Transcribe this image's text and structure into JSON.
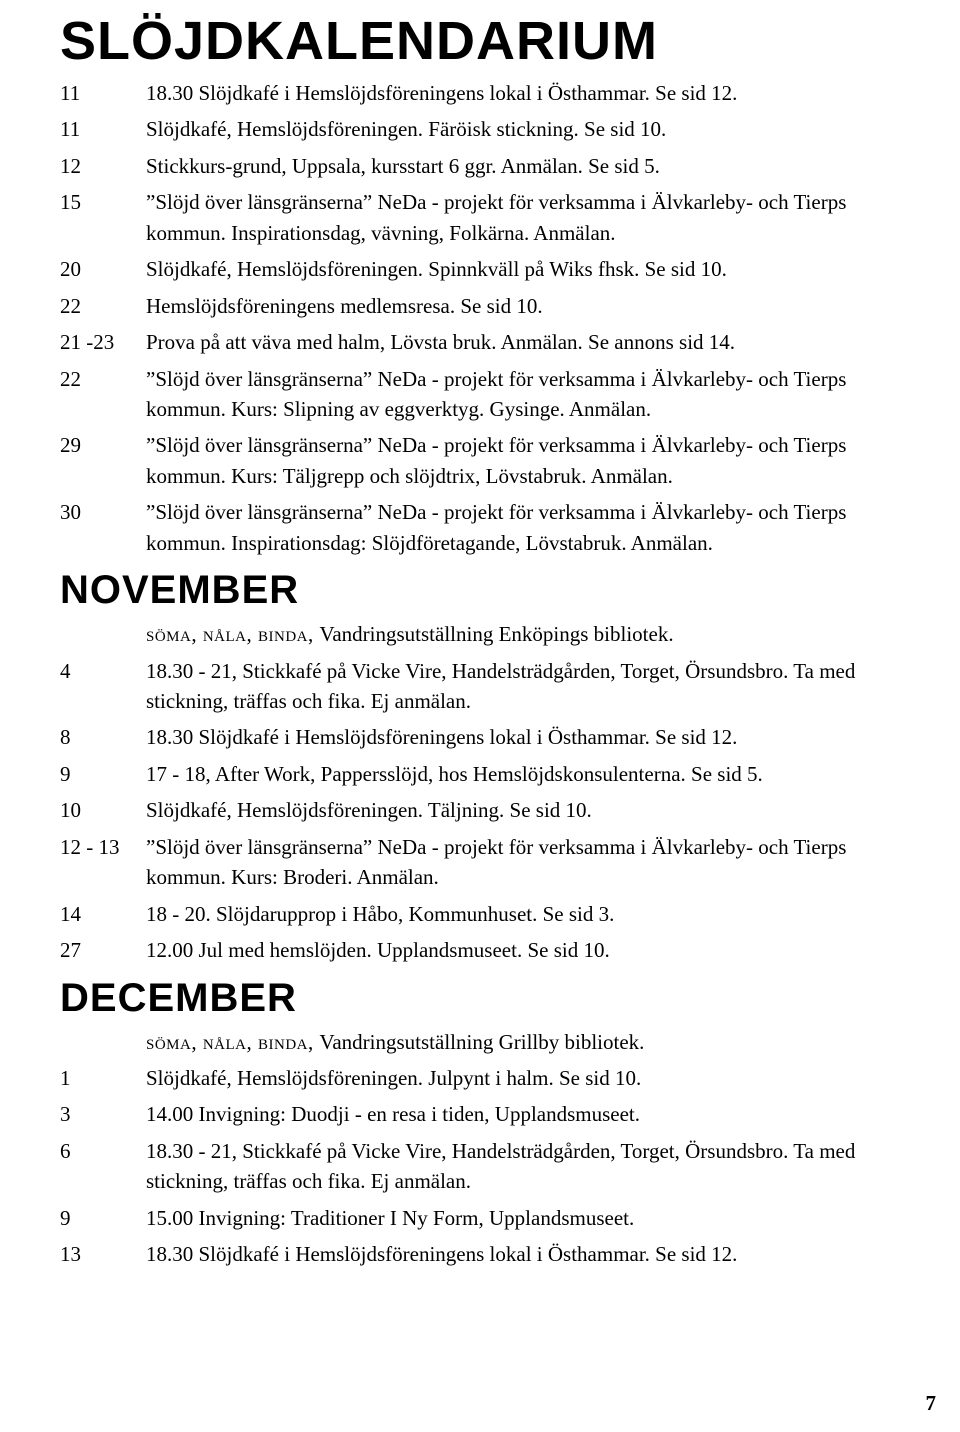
{
  "title": "SLÖJDKALENDARIUM",
  "page_number": "7",
  "typography": {
    "title_fontsize": 54,
    "month_fontsize": 40,
    "body_fontsize": 21,
    "title_font": "Arial Black",
    "body_font": "Georgia",
    "line_height": 1.45
  },
  "colors": {
    "background": "#ffffff",
    "text": "#000000"
  },
  "sections": [
    {
      "key": "october",
      "heading": null,
      "entries": [
        {
          "date": "11",
          "text": "18.30 Slöjdkafé i Hemslöjdsföreningens lokal i Östhammar. Se sid 12."
        },
        {
          "date": "11",
          "text": "Slöjdkafé, Hemslöjdsföreningen. Färöisk stickning. Se sid 10."
        },
        {
          "date": "12",
          "text": "Stickkurs-grund, Uppsala, kursstart 6 ggr. Anmälan. Se sid 5."
        },
        {
          "date": "15",
          "text": "\"Slöjd över länsgränserna\" NeDa - projekt för verksamma i Älvkarleby- och Tierps kommun. Inspirationsdag, vävning, Folkärna. Anmälan."
        },
        {
          "date": "20",
          "text": "Slöjdkafé, Hemslöjdsföreningen. Spinnkväll på Wiks fhsk. Se sid 10."
        },
        {
          "date": "22",
          "text": "Hemslöjdsföreningens medlemsresa. Se sid 10."
        },
        {
          "date": "21 -23",
          "text": "Prova på att väva med halm, Lövsta bruk. Anmälan. Se annons sid 14."
        },
        {
          "date": "22",
          "text": "\"Slöjd över länsgränserna\" NeDa - projekt för verksamma i Älvkarleby- och Tierps kommun. Kurs: Slipning av eggverktyg. Gysinge. Anmälan."
        },
        {
          "date": "29",
          "text": "\"Slöjd över länsgränserna\" NeDa - projekt för verksamma i Älvkarleby- och Tierps kommun. Kurs: Täljgrepp och slöjdtrix, Lövstabruk. Anmälan."
        },
        {
          "date": "30",
          "text": "\"Slöjd över länsgränserna\" NeDa - projekt för verksamma i Älvkarleby- och Tierps kommun. Inspirationsdag: Slöjdföretagande, Lövstabruk. Anmälan."
        }
      ]
    },
    {
      "key": "november",
      "heading": "NOVEMBER",
      "entries": [
        {
          "date": "",
          "smallcaps_prefix": "söma, nåla, binda, ",
          "text": "Vandringsutställning Enköpings bibliotek."
        },
        {
          "date": "4",
          "text": "18.30 - 21, Stickkafé på Vicke Vire, Handelsträdgården, Torget, Örsundsbro. Ta med stickning, träffas och fika. Ej anmälan."
        },
        {
          "date": "8",
          "text": "18.30 Slöjdkafé i Hemslöjdsföreningens lokal i Östhammar. Se sid 12."
        },
        {
          "date": "9",
          "text": "17 - 18, After Work, Pappersslöjd, hos Hemslöjdskonsulenterna. Se sid 5."
        },
        {
          "date": "10",
          "text": "Slöjdkafé, Hemslöjdsföreningen. Täljning. Se sid 10."
        },
        {
          "date": "12 - 13",
          "text": "\"Slöjd över länsgränserna\" NeDa - projekt för verksamma i Älvkarleby- och Tierps kommun. Kurs: Broderi. Anmälan."
        },
        {
          "date": "14",
          "text": "18 - 20. Slöjdarupprop i Håbo, Kommunhuset. Se sid 3."
        },
        {
          "date": "27",
          "text": "12.00 Jul med hemslöjden. Upplandsmuseet. Se sid 10."
        }
      ]
    },
    {
      "key": "december",
      "heading": "DECEMBER",
      "entries": [
        {
          "date": "",
          "smallcaps_prefix": "söma, nåla, binda, ",
          "text": "Vandringsutställning Grillby bibliotek."
        },
        {
          "date": "1",
          "text": "Slöjdkafé, Hemslöjdsföreningen. Julpynt i halm. Se sid 10."
        },
        {
          "date": "3",
          "text": "14.00 Invigning: Duodji - en resa i tiden, Upplandsmuseet."
        },
        {
          "date": "6",
          "text": "18.30 - 21, Stickkafé på Vicke Vire, Handelsträdgården, Torget, Örsundsbro. Ta med stickning, träffas och fika. Ej anmälan."
        },
        {
          "date": "9",
          "text": "15.00  Invigning: Traditioner I Ny Form, Upplandsmuseet."
        },
        {
          "date": "13",
          "text": "18.30 Slöjdkafé i Hemslöjdsföreningens lokal i Östhammar. Se sid 12."
        }
      ]
    }
  ]
}
